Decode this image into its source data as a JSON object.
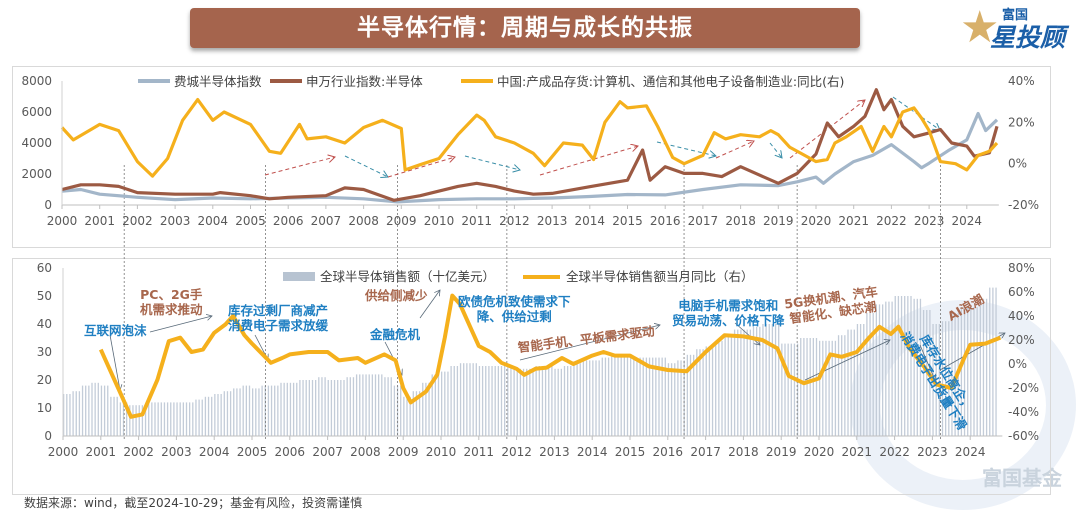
{
  "header": {
    "title": "半导体行情：周期与成长的共振"
  },
  "logo": {
    "line1": "富国",
    "line2": "星投顾"
  },
  "watermark": "富国基金",
  "footer": "数据来源：wind，截至2024-10-29；基金有风险，投资需谨慎",
  "colors": {
    "sox": "#a3b6c9",
    "sw": "#9c5a43",
    "yellow": "#f5b01c",
    "bars": "#c3ccd8",
    "blue_text": "#1f7fc2",
    "brown_text": "#a8674d",
    "banner": "#a5644d"
  },
  "chart_data": [
    {
      "type": "line",
      "xlim": [
        2000,
        2024.85
      ],
      "x_ticks": [
        "2000",
        "2001",
        "2002",
        "2003",
        "2004",
        "2005",
        "2006",
        "2007",
        "2008",
        "2009",
        "2010",
        "2011",
        "2012",
        "2013",
        "2014",
        "2015",
        "2016",
        "2017",
        "2018",
        "2019",
        "2020",
        "2021",
        "2022",
        "2023",
        "2024"
      ],
      "y_left_ticks": [
        "0",
        "2000",
        "4000",
        "6000",
        "8000"
      ],
      "ylim_left": [
        0,
        8000
      ],
      "y_right_ticks": [
        "-20%",
        "0%",
        "20%",
        "40%"
      ],
      "ylim_right": [
        -20,
        40
      ],
      "grid": false,
      "legend_position": "top",
      "series": [
        {
          "name": "费城半导体指数",
          "axis": "left",
          "x": [
            2000,
            2000.5,
            2001,
            2002,
            2003,
            2004,
            2005,
            2006,
            2007,
            2008,
            2008.9,
            2010,
            2011,
            2012,
            2013,
            2014,
            2015,
            2016,
            2017,
            2018,
            2019,
            2019.5,
            2020,
            2020.2,
            2020.5,
            2021,
            2021.5,
            2022,
            2022.6,
            2022.8,
            2023,
            2023.5,
            2024,
            2024.3,
            2024.5,
            2024.8
          ],
          "y": [
            900,
            1000,
            700,
            500,
            350,
            450,
            400,
            450,
            500,
            400,
            200,
            350,
            400,
            400,
            450,
            550,
            680,
            650,
            1000,
            1300,
            1250,
            1500,
            1800,
            1400,
            2000,
            2800,
            3200,
            3900,
            2800,
            2400,
            2700,
            3500,
            4200,
            5900,
            4800,
            5500
          ]
        },
        {
          "name": "申万行业指数:半导体",
          "axis": "left",
          "x": [
            2000,
            2000.5,
            2001,
            2001.5,
            2002,
            2003,
            2004,
            2004.2,
            2005,
            2005.5,
            2006,
            2007,
            2007.5,
            2008,
            2008.8,
            2009.5,
            2010,
            2010.5,
            2011,
            2011.5,
            2012,
            2012.5,
            2013,
            2014,
            2015,
            2015.4,
            2015.6,
            2016,
            2016.5,
            2017,
            2017.5,
            2018,
            2018.5,
            2019,
            2019.5,
            2020,
            2020.3,
            2020.6,
            2021,
            2021.3,
            2021.6,
            2021.8,
            2022,
            2022.3,
            2022.6,
            2023,
            2023.3,
            2023.6,
            2024,
            2024.2,
            2024.6,
            2024.8
          ],
          "y": [
            1000,
            1300,
            1300,
            1200,
            800,
            700,
            700,
            800,
            600,
            400,
            500,
            600,
            1100,
            1000,
            300,
            600,
            900,
            1200,
            1400,
            1200,
            900,
            700,
            750,
            1180,
            1600,
            3550,
            1600,
            2470,
            2040,
            2040,
            1830,
            2470,
            1930,
            1400,
            2040,
            3290,
            5290,
            4400,
            5080,
            5720,
            7440,
            6150,
            6800,
            5080,
            4400,
            4650,
            4870,
            4000,
            3800,
            3150,
            3370,
            5080
          ]
        },
        {
          "name": "中国:产成品存货:计算机、通信和其他电子设备制造业:同比(右)",
          "axis": "right",
          "x": [
            2000,
            2000.3,
            2001,
            2001.5,
            2002,
            2002.4,
            2002.8,
            2003.2,
            2003.6,
            2004,
            2004.3,
            2005,
            2005.5,
            2005.8,
            2006.3,
            2006.5,
            2007,
            2007.5,
            2008,
            2008.5,
            2009,
            2009.1,
            2009.5,
            2010,
            2010.5,
            2011,
            2011.2,
            2011.5,
            2012,
            2012.5,
            2012.8,
            2013.3,
            2013.8,
            2014.1,
            2014.4,
            2014.8,
            2015,
            2015.5,
            2015.8,
            2016.2,
            2016.5,
            2017,
            2017.3,
            2017.6,
            2018,
            2018.5,
            2018.8,
            2019,
            2019.3,
            2019.7,
            2020,
            2020.3,
            2020.5,
            2020.8,
            2021.2,
            2021.5,
            2021.8,
            2022,
            2022.3,
            2022.6,
            2022.8,
            2023,
            2023.3,
            2023.7,
            2024,
            2024.3,
            2024.6,
            2024.8
          ],
          "y": [
            17.5,
            11.5,
            19,
            16,
            1,
            -6,
            2.5,
            21,
            31,
            21,
            25,
            19,
            6,
            5,
            19,
            12,
            13,
            10,
            17.5,
            21,
            17,
            -3,
            -0.5,
            2.5,
            14,
            23.5,
            21,
            13,
            10,
            5,
            -1,
            10,
            9,
            2,
            20,
            30,
            27,
            28,
            18,
            3,
            0,
            4,
            15,
            12,
            14,
            13,
            16,
            14,
            8,
            4,
            1,
            2,
            10,
            13,
            18,
            6,
            18,
            13,
            25,
            27,
            22,
            16,
            1,
            0,
            -3,
            4,
            6,
            10
          ]
        }
      ],
      "event_years": [
        2001.65,
        2005.4,
        2008.9,
        2011.8,
        2016.5,
        2019.5,
        2023.3
      ]
    },
    {
      "type": "bar+line",
      "xlim": [
        2000,
        2024.85
      ],
      "x_ticks": [
        "2000",
        "2001",
        "2002",
        "2003",
        "2004",
        "2005",
        "2006",
        "2007",
        "2008",
        "2009",
        "2010",
        "2011",
        "2012",
        "2013",
        "2014",
        "2015",
        "2016",
        "2017",
        "2018",
        "2019",
        "2020",
        "2021",
        "2022",
        "2023",
        "2024"
      ],
      "y_left_ticks": [
        "0",
        "10",
        "20",
        "30",
        "40",
        "50",
        "60"
      ],
      "ylim_left": [
        0,
        60
      ],
      "y_right_ticks": [
        "-60%",
        "-40%",
        "-20%",
        "0%",
        "20%",
        "40%",
        "60%",
        "80%"
      ],
      "ylim_right": [
        -60,
        80
      ],
      "grid": false,
      "legend_position": "top-right",
      "series": [
        {
          "name": "全球半导体销售额（十亿美元）",
          "type": "bar",
          "axis": "left",
          "x_start": 2000,
          "x_step": 0.25,
          "values": [
            15,
            16,
            18,
            19,
            18,
            14,
            12,
            11,
            11,
            12,
            12,
            12,
            12,
            12,
            13,
            14,
            15,
            16,
            17,
            18,
            17,
            18,
            18,
            19,
            19,
            20,
            20,
            21,
            20,
            20,
            21,
            22,
            22,
            22,
            21,
            18,
            14,
            16,
            19,
            22,
            23,
            25,
            26,
            26,
            25,
            25,
            25,
            25,
            24,
            24,
            25,
            25,
            24,
            25,
            26,
            27,
            27,
            28,
            29,
            29,
            28,
            28,
            28,
            28,
            26,
            27,
            29,
            31,
            32,
            34,
            36,
            38,
            38,
            39,
            40,
            40,
            33,
            33,
            35,
            35,
            34,
            34,
            36,
            38,
            40,
            44,
            47,
            48,
            50,
            50,
            49,
            45,
            40,
            41,
            44,
            46,
            46,
            49,
            53
          ]
        },
        {
          "name": "全球半导体销售额当月同比（右）",
          "type": "line",
          "axis": "right",
          "x": [
            2001.0,
            2001.5,
            2001.8,
            2002.1,
            2002.5,
            2002.8,
            2003.1,
            2003.4,
            2003.7,
            2004,
            2004.3,
            2004.5,
            2004.8,
            2005,
            2005.5,
            2005.8,
            2006,
            2006.5,
            2007,
            2007.3,
            2007.8,
            2008,
            2008.5,
            2008.8,
            2009.0,
            2009.2,
            2009.6,
            2009.9,
            2010.1,
            2010.3,
            2010.5,
            2010.8,
            2011,
            2011.3,
            2011.6,
            2012,
            2012.2,
            2012.5,
            2012.8,
            2013.2,
            2013.5,
            2014,
            2014.3,
            2014.6,
            2015,
            2015.5,
            2016,
            2016.5,
            2017,
            2017.5,
            2018,
            2018.5,
            2018.9,
            2019.2,
            2019.6,
            2020,
            2020.3,
            2020.6,
            2021,
            2021.3,
            2021.6,
            2021.9,
            2022.1,
            2022.4,
            2022.8,
            2023.1,
            2023.5,
            2023.8,
            2024,
            2024.4,
            2024.8
          ],
          "y": [
            12,
            -23,
            -44,
            -42,
            -13,
            19,
            22,
            10,
            12,
            26,
            33,
            40,
            24,
            17,
            1,
            5,
            8,
            10,
            10,
            3,
            5,
            1,
            8,
            3,
            -20,
            -32,
            -23,
            -9,
            22,
            57,
            50,
            29,
            15,
            10,
            1,
            -4,
            -9,
            -4,
            -3,
            5,
            0,
            7,
            10,
            7,
            7,
            -2,
            -5,
            -6,
            10,
            24,
            23,
            20,
            13,
            -10,
            -16,
            -12,
            8,
            6,
            10,
            21,
            31,
            25,
            31,
            13,
            -3,
            -17,
            -20,
            2,
            16,
            17,
            22
          ]
        }
      ],
      "annotations": [
        {
          "lines": [
            "互联网泡沫"
          ],
          "color": "blue"
        },
        {
          "lines": [
            "PC、2G手",
            "机需求推动"
          ],
          "color": "brown"
        },
        {
          "lines": [
            "库存过剩厂商减产",
            "消费电子需求放缓"
          ],
          "color": "blue"
        },
        {
          "lines": [
            "金融危机"
          ],
          "color": "blue"
        },
        {
          "lines": [
            "供给侧减少"
          ],
          "color": "brown"
        },
        {
          "lines": [
            "欧债危机致使需求下",
            "降、供给过剩"
          ],
          "color": "blue"
        },
        {
          "lines": [
            "智能手机、平板需求驱动"
          ],
          "color": "brown"
        },
        {
          "lines": [
            "电脑手机需求饱和",
            "贸易动荡、价格下降"
          ],
          "color": "blue"
        },
        {
          "lines": [
            "5G换机潮、汽车",
            "智能化、缺芯潮"
          ],
          "color": "brown"
        },
        {
          "lines": [
            "库存水位高企，",
            "消费电子出货量下滑"
          ],
          "color": "blue"
        },
        {
          "lines": [
            "AI浪潮"
          ],
          "color": "brown"
        }
      ]
    }
  ]
}
